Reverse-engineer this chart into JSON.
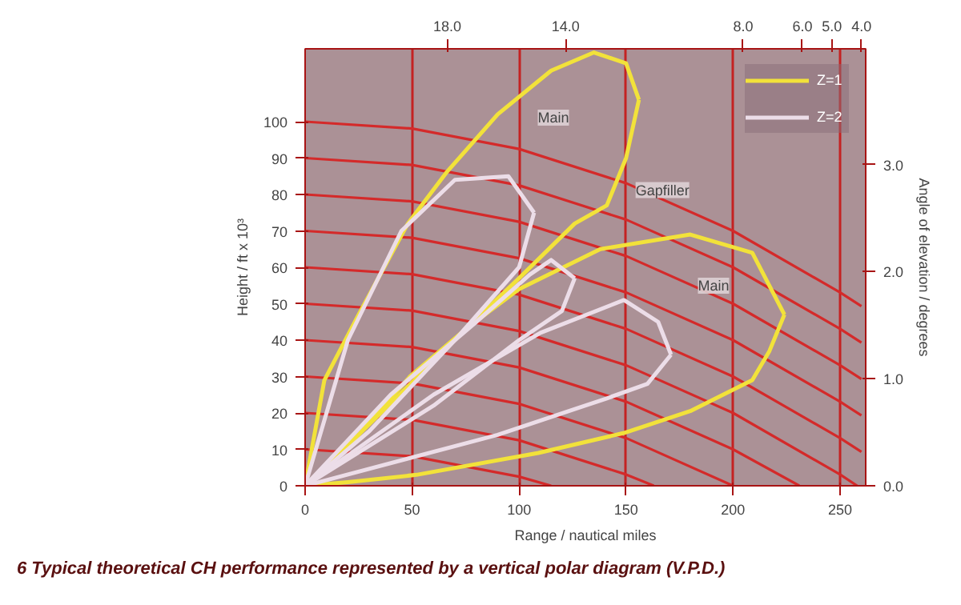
{
  "chart_data": {
    "type": "line",
    "title": "6    Typical theoretical CH performance represented by a vertical polar diagram (V.P.D.)",
    "xlabel": "Range / nautical miles",
    "ylabel": "Height / ft x 10³",
    "y2label": "Angle of elevation / degrees",
    "xlim": [
      0,
      262
    ],
    "ylim": [
      0,
      120
    ],
    "xticks": [
      0,
      50,
      100,
      150,
      200,
      250
    ],
    "yticks": [
      0,
      10,
      20,
      30,
      40,
      50,
      60,
      70,
      80,
      90,
      100
    ],
    "x2lim": [
      22.8,
      3.86
    ],
    "x2ticks": [
      {
        "value": 18,
        "label": "18.0"
      },
      {
        "value": 14,
        "label": "14.0"
      },
      {
        "value": 8,
        "label": "8.0"
      },
      {
        "value": 6,
        "label": "6.0"
      },
      {
        "value": 5,
        "label": "5.0"
      },
      {
        "value": 4,
        "label": "4.0"
      }
    ],
    "y2lim": [
      0,
      4.08
    ],
    "y2ticks": [
      {
        "value": 0,
        "label": "0.0"
      },
      {
        "value": 1,
        "label": "1.0"
      },
      {
        "value": 2,
        "label": "2.0"
      },
      {
        "value": 3,
        "label": "3.0"
      }
    ],
    "grid": "x",
    "legend": "top right",
    "series": [
      {
        "color": "#d42a2a",
        "x": [
          0,
          50,
          100,
          115
        ],
        "values": [
          10,
          8.1,
          2.5,
          0
        ]
      },
      {
        "color": "#d42a2a",
        "x": [
          0,
          50,
          100,
          150,
          163
        ],
        "values": [
          20,
          18.1,
          12.5,
          3.1,
          0
        ]
      },
      {
        "color": "#d42a2a",
        "x": [
          0,
          50,
          100,
          150,
          200
        ],
        "values": [
          30,
          28.1,
          22.5,
          13.1,
          0
        ]
      },
      {
        "color": "#d42a2a",
        "x": [
          0,
          50,
          100,
          150,
          200,
          231
        ],
        "values": [
          40,
          38.1,
          32.5,
          23.1,
          10,
          0
        ]
      },
      {
        "color": "#d42a2a",
        "x": [
          0,
          50,
          100,
          150,
          200,
          250,
          258
        ],
        "values": [
          50,
          48.1,
          42.5,
          33.1,
          20,
          3.1,
          0
        ]
      },
      {
        "color": "#d42a2a",
        "x": [
          0,
          50,
          100,
          150,
          200,
          250,
          260
        ],
        "values": [
          60,
          58.1,
          52.5,
          43.1,
          30,
          13.1,
          9.3
        ]
      },
      {
        "color": "#d42a2a",
        "x": [
          0,
          50,
          100,
          150,
          200,
          250,
          260
        ],
        "values": [
          70,
          68.1,
          62.5,
          53.1,
          40,
          23.1,
          19.3
        ]
      },
      {
        "color": "#d42a2a",
        "x": [
          0,
          50,
          100,
          150,
          200,
          250,
          260
        ],
        "values": [
          80,
          78.1,
          72.5,
          63.1,
          50,
          33.1,
          29.3
        ]
      },
      {
        "color": "#d42a2a",
        "x": [
          0,
          50,
          100,
          150,
          200,
          250,
          260
        ],
        "values": [
          90,
          88.1,
          82.5,
          73.1,
          60,
          43.1,
          39.3
        ]
      },
      {
        "color": "#d42a2a",
        "x": [
          0,
          50,
          100,
          150,
          200,
          250,
          260
        ],
        "values": [
          100,
          98.1,
          92.5,
          83.1,
          70,
          53.1,
          49.3
        ]
      },
      {
        "name": "Z=1",
        "color": "#f2e23a",
        "x": [
          0,
          9,
          25,
          48,
          66,
          90,
          115,
          135,
          150,
          156
        ],
        "values": [
          0,
          29,
          47,
          72,
          86,
          102,
          114,
          119,
          116,
          106
        ]
      },
      {
        "color": "#f2e23a",
        "x": [
          0,
          25,
          51,
          75,
          100,
          126,
          141,
          150,
          156
        ],
        "values": [
          0,
          14,
          29,
          43,
          57,
          72,
          77,
          90,
          106
        ]
      },
      {
        "color": "#f2e23a",
        "x": [
          0,
          25,
          49,
          75,
          100,
          138,
          180,
          209,
          224
        ],
        "values": [
          0,
          14,
          30,
          43,
          54,
          65,
          69,
          64,
          47
        ]
      },
      {
        "color": "#f2e23a",
        "x": [
          0,
          20,
          52,
          109,
          149,
          180,
          209,
          217,
          224
        ],
        "values": [
          0,
          1,
          3,
          9,
          14.5,
          20.5,
          29,
          37,
          47
        ]
      },
      {
        "name": "Z=2",
        "color": "#ecdde8",
        "x": [
          0,
          20,
          45,
          70,
          95,
          107
        ],
        "values": [
          0,
          40,
          70,
          84,
          85,
          75
        ]
      },
      {
        "color": "#ecdde8",
        "x": [
          0,
          30,
          70,
          100,
          107
        ],
        "values": [
          0,
          15,
          40,
          60,
          75
        ]
      },
      {
        "color": "#ecdde8",
        "x": [
          0,
          40,
          80,
          105,
          115,
          126
        ],
        "values": [
          0,
          25,
          45,
          58,
          62,
          57
        ]
      },
      {
        "color": "#ecdde8",
        "x": [
          0,
          60,
          100,
          120,
          126
        ],
        "values": [
          0,
          22,
          40,
          48,
          57
        ]
      },
      {
        "color": "#ecdde8",
        "x": [
          0,
          60,
          110,
          149,
          165,
          171
        ],
        "values": [
          0,
          25,
          42,
          51,
          45,
          36
        ]
      },
      {
        "color": "#ecdde8",
        "x": [
          0,
          90,
          141,
          160,
          171
        ],
        "values": [
          0,
          14,
          24,
          28,
          36
        ]
      }
    ],
    "annotations": [
      "Main",
      {
        "text": "Gapfiller",
        "x": 167,
        "y": 79
      },
      "Main"
    ]
  }
}
